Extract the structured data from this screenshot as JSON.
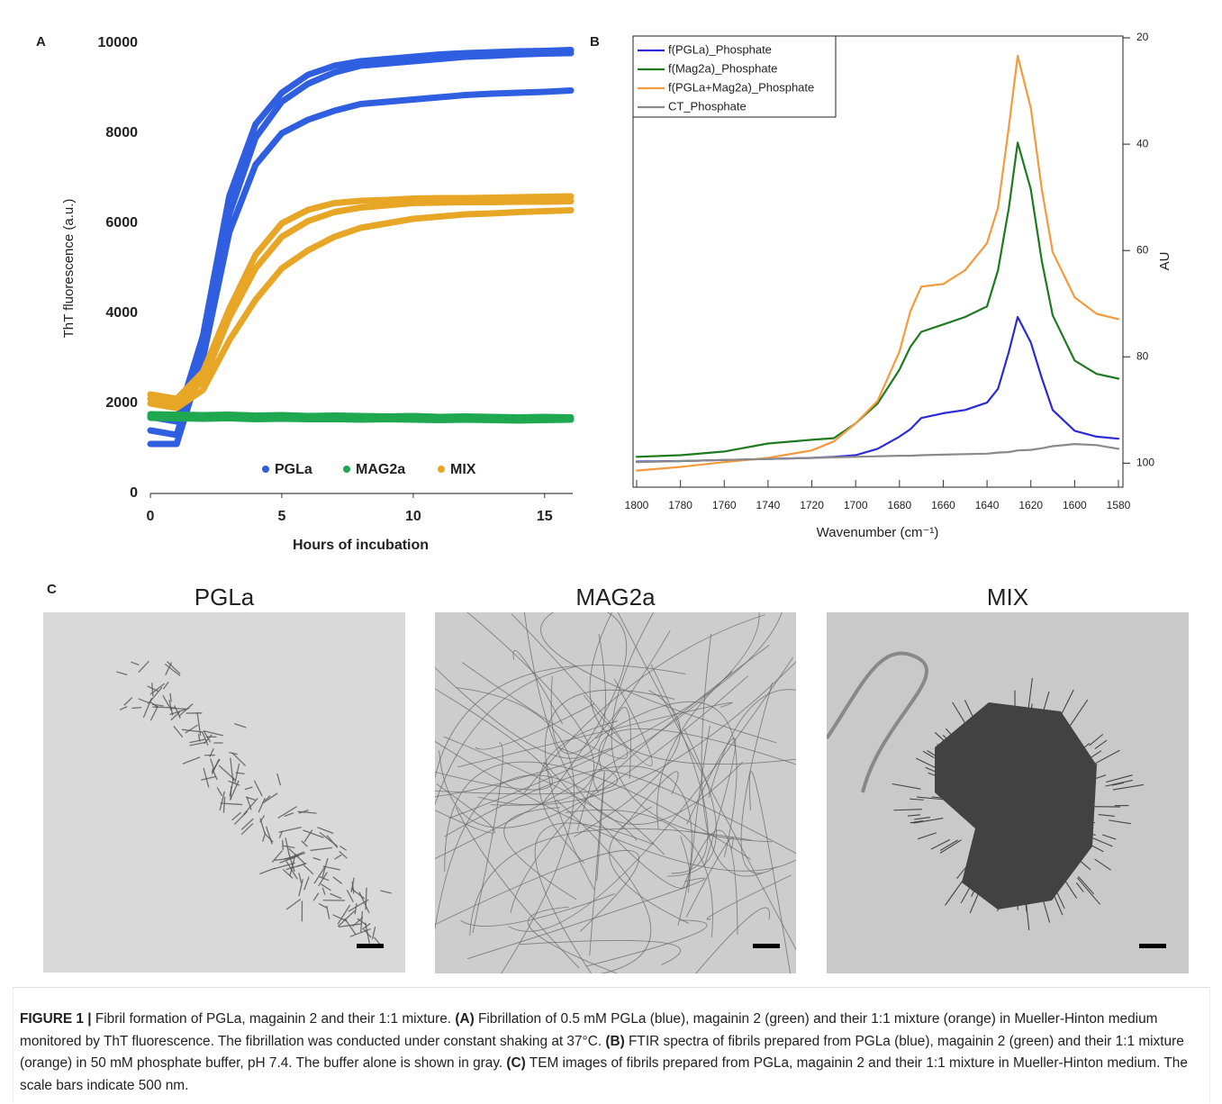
{
  "chart_data": [
    {
      "type": "line",
      "panel": "A",
      "xlabel": "Hours of incubation",
      "ylabel": "ThT fluorescence (a.u.)",
      "x": [
        0,
        1,
        2,
        3,
        4,
        5,
        6,
        7,
        8,
        9,
        10,
        11,
        12,
        13,
        14,
        15,
        16
      ],
      "xlim": [
        0,
        16
      ],
      "xticks": [
        0,
        5,
        10,
        15
      ],
      "ylim": [
        0,
        10000
      ],
      "yticks": [
        0,
        2000,
        4000,
        6000,
        8000,
        10000
      ],
      "grid": false,
      "legend": "bottom",
      "y_axis": "left",
      "series": [
        {
          "name": "PGLa",
          "color": "#2f5fe0",
          "values": [
            [
              1700,
              1600,
              3500,
              6600,
              8200,
              8900,
              9300,
              9500,
              9600,
              9650,
              9700,
              9750,
              9780,
              9800,
              9820,
              9830,
              9850
            ],
            [
              1400,
              1300,
              3200,
              6200,
              7900,
              8700,
              9100,
              9350,
              9500,
              9550,
              9600,
              9650,
              9700,
              9720,
              9750,
              9770,
              9780
            ],
            [
              1100,
              1100,
              3000,
              5800,
              7300,
              8000,
              8300,
              8500,
              8650,
              8700,
              8750,
              8800,
              8850,
              8880,
              8900,
              8920,
              8950
            ]
          ]
        },
        {
          "name": "MAG2a",
          "color": "#1fa84f",
          "values": [
            [
              1760,
              1750,
              1740,
              1750,
              1730,
              1740,
              1720,
              1730,
              1720,
              1710,
              1720,
              1700,
              1710,
              1700,
              1690,
              1700,
              1690
            ],
            [
              1720,
              1710,
              1700,
              1710,
              1690,
              1700,
              1690,
              1700,
              1680,
              1690,
              1680,
              1670,
              1680,
              1670,
              1660,
              1670,
              1660
            ],
            [
              1680,
              1670,
              1660,
              1670,
              1650,
              1660,
              1650,
              1650,
              1640,
              1650,
              1640,
              1630,
              1640,
              1630,
              1620,
              1630,
              1640
            ]
          ]
        },
        {
          "name": "MIX",
          "color": "#e8a626",
          "values": [
            [
              2200,
              2100,
              2700,
              4100,
              5300,
              6000,
              6300,
              6450,
              6500,
              6520,
              6550,
              6560,
              6560,
              6570,
              6580,
              6590,
              6600
            ],
            [
              2100,
              2000,
              2500,
              3900,
              5000,
              5700,
              6050,
              6250,
              6350,
              6400,
              6450,
              6460,
              6470,
              6470,
              6480,
              6480,
              6490
            ],
            [
              2000,
              1900,
              2300,
              3400,
              4300,
              5000,
              5400,
              5700,
              5900,
              6000,
              6100,
              6150,
              6200,
              6220,
              6250,
              6270,
              6290
            ]
          ]
        }
      ]
    },
    {
      "type": "line",
      "panel": "B",
      "xlabel": "Wavenumber (cm⁻¹)",
      "ylabel": "AU",
      "x": [
        1800,
        1780,
        1760,
        1740,
        1720,
        1710,
        1700,
        1690,
        1680,
        1675,
        1670,
        1660,
        1650,
        1640,
        1635,
        1630,
        1626,
        1620,
        1615,
        1610,
        1600,
        1590,
        1580
      ],
      "xlim": [
        1800,
        1580
      ],
      "xticks": [
        1800,
        1780,
        1760,
        1740,
        1720,
        1700,
        1680,
        1660,
        1640,
        1620,
        1600,
        1580
      ],
      "ylim": [
        104,
        20
      ],
      "yticks": [
        20,
        40,
        60,
        80,
        100
      ],
      "grid": false,
      "legend": "upper left",
      "y_axis": "right",
      "series": [
        {
          "name": "f(PGLa)_Phosphate",
          "color": "#2a2ad8",
          "values": [
            [
              99.7,
              99.6,
              99.4,
              99.2,
              99,
              98.8,
              98.5,
              97.3,
              95,
              93.6,
              91.5,
              90.6,
              90,
              88.6,
              86,
              79,
              72.5,
              77.3,
              84,
              90,
              93.9,
              95,
              95.4
            ]
          ]
        },
        {
          "name": "f(Mag2a)_Phosphate",
          "color": "#1f7a1f",
          "values": [
            [
              98.8,
              98.5,
              97.8,
              96.3,
              95.6,
              95.3,
              92.5,
              88.8,
              82.4,
              78.1,
              75.3,
              73.9,
              72.5,
              70.5,
              63.7,
              51.9,
              39.7,
              48.5,
              62,
              72.2,
              80.7,
              83.2,
              84.1
            ]
          ]
        },
        {
          "name": "f(PGLa+Mag2a)_Phosphate",
          "color": "#f59a3c",
          "values": [
            [
              101.4,
              100.7,
              99.8,
              99,
              97.6,
              95.9,
              92.5,
              88.3,
              79,
              71.4,
              66.8,
              66.3,
              63.7,
              58.6,
              51.9,
              36.6,
              23.4,
              33.2,
              48.5,
              60.3,
              68.8,
              71.9,
              72.9
            ]
          ]
        },
        {
          "name": "CT_Phosphate",
          "color": "#8a8a8a",
          "values": [
            [
              99.8,
              99.6,
              99.4,
              99.2,
              99,
              98.9,
              98.8,
              98.7,
              98.6,
              98.6,
              98.5,
              98.4,
              98.3,
              98.2,
              98,
              97.9,
              97.6,
              97.5,
              97.2,
              96.8,
              96.4,
              96.6,
              97.3
            ]
          ]
        }
      ]
    }
  ],
  "panel_c": {
    "label": "C",
    "titles": [
      "PGLa",
      "MAG2a",
      "MIX"
    ]
  },
  "caption": [
    {
      "text": "FIGURE 1 |",
      "bold": true
    },
    {
      "text": " Fibril formation of PGLa, magainin 2 and their 1:1 mixture. ",
      "bold": false
    },
    {
      "text": "(A)",
      "bold": true
    },
    {
      "text": " Fibrillation of 0.5 mM PGLa (blue), magainin 2 (green) and their 1:1 mixture (orange) in Mueller-Hinton medium monitored by ThT fluorescence. The fibrillation was conducted under constant shaking at 37°C. ",
      "bold": false
    },
    {
      "text": "(B)",
      "bold": true
    },
    {
      "text": " FTIR spectra of fibrils prepared from PGLa (blue), magainin 2 (green) and their 1:1 mixture (orange) in 50 mM phosphate buffer, pH 7.4. The buffer alone is shown in gray. ",
      "bold": false
    },
    {
      "text": "(C)",
      "bold": true
    },
    {
      "text": " TEM images of fibrils prepared from PGLa, magainin 2 and their 1:1 mixture in Mueller-Hinton medium. The scale bars indicate 500 nm.",
      "bold": false
    }
  ]
}
